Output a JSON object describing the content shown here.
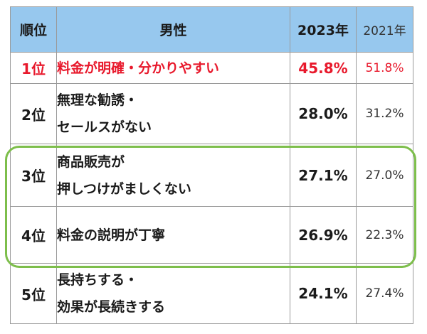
{
  "header": {
    "rank": "順位",
    "gender": "男性",
    "year_2023": "2023年",
    "year_2021": "2021年"
  },
  "rows": [
    {
      "rank": "1位",
      "lines": [
        "料金が明確・分かりやすい"
      ],
      "v2023": "45.8%",
      "v2021": "51.8%"
    },
    {
      "rank": "2位",
      "lines": [
        "無理な勧誘・",
        "セールスがない"
      ],
      "v2023": "28.0%",
      "v2021": "31.2%"
    },
    {
      "rank": "3位",
      "lines": [
        "商品販売が",
        "押しつけがましくない"
      ],
      "v2023": "27.1%",
      "v2021": "27.0%"
    },
    {
      "rank": "4位",
      "lines": [
        "料金の説明が丁寧"
      ],
      "v2023": "26.9%",
      "v2021": "22.3%"
    },
    {
      "rank": "5位",
      "lines": [
        "長持ちする・",
        "効果が長続きする"
      ],
      "v2023": "24.1%",
      "v2021": "27.4%"
    }
  ],
  "colors": {
    "header_bg": "#97c8ee",
    "top_rank_text": "#e8192c",
    "highlight_border": "#7dbe4b"
  }
}
